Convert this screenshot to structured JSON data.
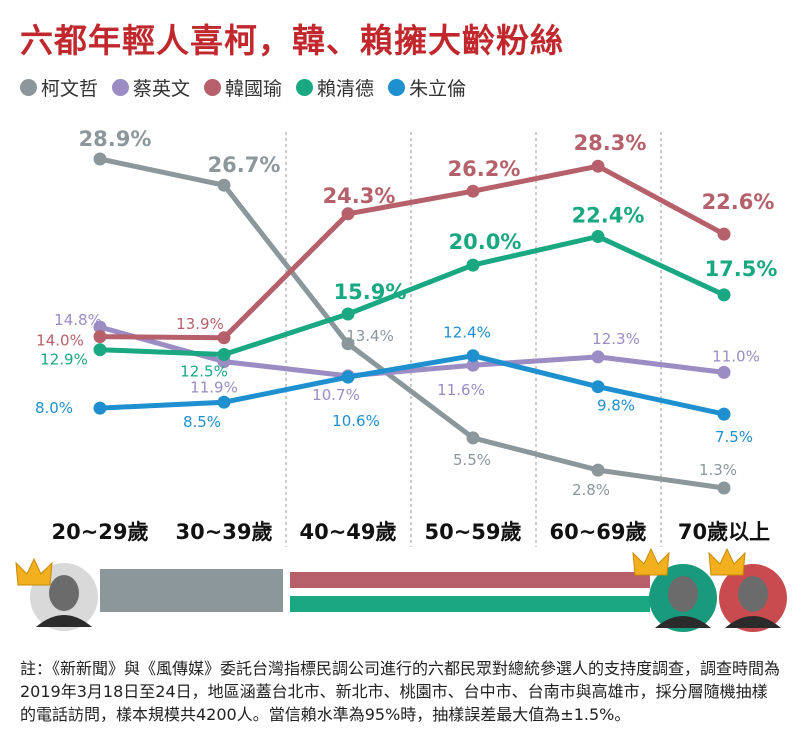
{
  "title": "六都年輕人喜柯，韓、賴擁大齡粉絲",
  "legend": [
    {
      "name": "柯文哲",
      "color": "#8c979c"
    },
    {
      "name": "蔡英文",
      "color": "#9b8cc4"
    },
    {
      "name": "韓國瑜",
      "color": "#b5606a"
    },
    {
      "name": "賴清德",
      "color": "#19a882"
    },
    {
      "name": "朱立倫",
      "color": "#1e8fcf"
    }
  ],
  "chart_data": {
    "type": "line",
    "title": "六都年輕人喜柯，韓、賴擁大齡粉絲",
    "categories": [
      "20~29歲",
      "30~39歲",
      "40~49歲",
      "50~59歲",
      "60~69歲",
      "70歲以上"
    ],
    "series": [
      {
        "name": "柯文哲",
        "color": "#8c979c",
        "values": [
          28.9,
          26.7,
          13.4,
          5.5,
          2.8,
          1.3
        ],
        "labels": [
          "28.9%",
          "26.7%",
          "13.4%",
          "5.5%",
          "2.8%",
          "1.3%"
        ]
      },
      {
        "name": "蔡英文",
        "color": "#9b8cc4",
        "values": [
          14.8,
          11.9,
          10.7,
          11.6,
          12.3,
          11.0
        ],
        "labels": [
          "14.8%",
          "11.9%",
          "10.7%",
          "11.6%",
          "12.3%",
          "11.0%"
        ]
      },
      {
        "name": "韓國瑜",
        "color": "#b5606a",
        "values": [
          14.0,
          13.9,
          24.3,
          26.2,
          28.3,
          22.6
        ],
        "labels": [
          "14.0%",
          "13.9%",
          "24.3%",
          "26.2%",
          "28.3%",
          "22.6%"
        ]
      },
      {
        "name": "賴清德",
        "color": "#19a882",
        "values": [
          12.9,
          12.5,
          15.9,
          20.0,
          22.4,
          17.5
        ],
        "labels": [
          "12.9%",
          "12.5%",
          "15.9%",
          "20.0%",
          "22.4%",
          "17.5%"
        ]
      },
      {
        "name": "朱立倫",
        "color": "#1e8fcf",
        "values": [
          8.0,
          8.5,
          10.6,
          12.4,
          9.8,
          7.5
        ],
        "labels": [
          "8.0%",
          "8.5%",
          "10.6%",
          "12.4%",
          "9.8%",
          "7.5%"
        ]
      }
    ],
    "legend_position": "top-left",
    "grid": "vertical dashed separators between age groups"
  },
  "leader_bars": [
    {
      "name": "柯文哲",
      "color": "#8c979c",
      "span": "20~39歲"
    },
    {
      "name": "韓國瑜",
      "color": "#b5606a",
      "span": "40~69歲"
    },
    {
      "name": "賴清德",
      "color": "#19a882",
      "span": "40~69歲"
    }
  ],
  "note": "註：《新新聞》與《風傳媒》委託台灣指標民調公司進行的六都民眾對總統參選人的支持度調查，調查時間為2019年3月18日至24日，地區涵蓋台北市、新北市、桃園市、台中市、台南市與高雄市，採分層隨機抽樣的電話訪問，樣本規模共4200人。當信賴水準為95%時，抽樣誤差最大值為±1.5%。"
}
